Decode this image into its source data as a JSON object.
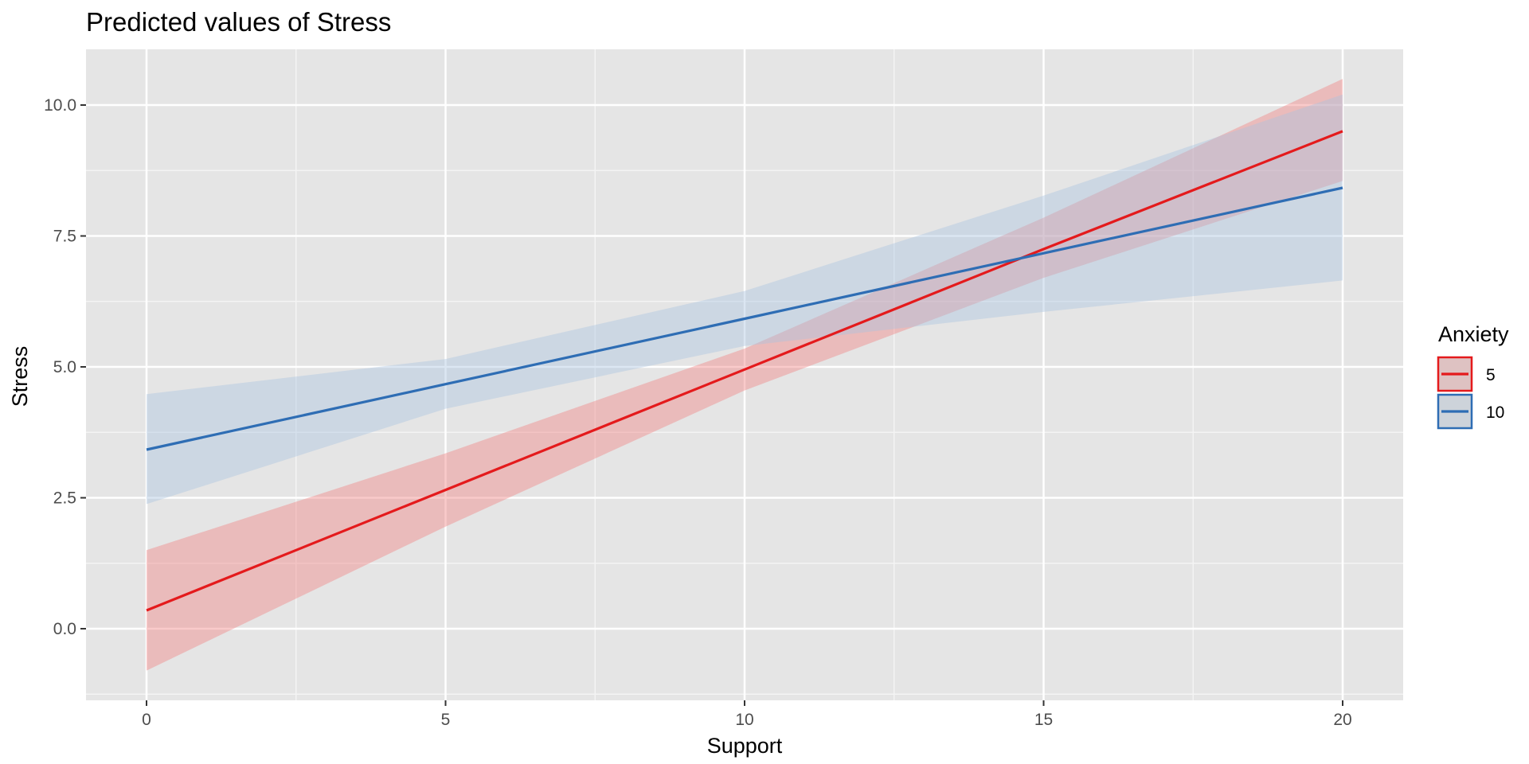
{
  "chart_data": {
    "type": "line",
    "title": "Predicted values of Stress",
    "xlabel": "Support",
    "ylabel": "Stress",
    "xlim": [
      -1,
      21
    ],
    "ylim": [
      -1.3,
      11.1
    ],
    "x_ticks": [
      0,
      5,
      10,
      15,
      20
    ],
    "x_tick_labels": [
      "0",
      "5",
      "10",
      "15",
      "20"
    ],
    "y_ticks": [
      0,
      2.5,
      5,
      7.5,
      10
    ],
    "y_tick_labels": [
      "0.0",
      "2.5",
      "5.0",
      "7.5",
      "10.0"
    ],
    "grid": true,
    "legend": {
      "title": "Anxiety",
      "position": "right"
    },
    "series": [
      {
        "name": "5",
        "color": "#e41a1c",
        "band_color": "#f08080",
        "x": [
          0,
          5,
          10,
          15,
          20
        ],
        "values": [
          0.35,
          2.65,
          4.95,
          7.25,
          9.5
        ],
        "lower": [
          -0.8,
          1.95,
          4.55,
          6.7,
          8.55
        ],
        "upper": [
          1.5,
          3.35,
          5.35,
          7.85,
          10.5
        ]
      },
      {
        "name": "10",
        "color": "#2e6db4",
        "band_color": "#aac4e0",
        "x": [
          0,
          5,
          10,
          15,
          20
        ],
        "values": [
          3.42,
          4.67,
          5.92,
          7.17,
          8.42
        ],
        "lower": [
          2.38,
          4.2,
          5.4,
          6.05,
          6.65
        ],
        "upper": [
          4.48,
          5.15,
          6.45,
          8.27,
          10.2
        ]
      }
    ]
  }
}
